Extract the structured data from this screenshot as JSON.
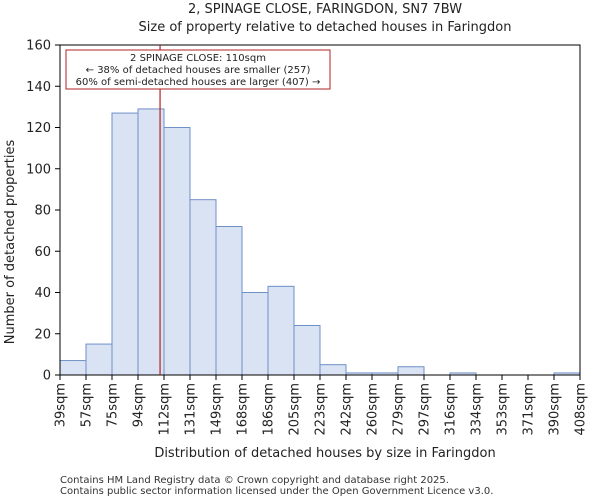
{
  "chart_data": {
    "type": "bar",
    "title": "2, SPINAGE CLOSE, FARINGDON, SN7 7BW",
    "subtitle": "Size of property relative to detached houses in Faringdon",
    "xlabel": "Distribution of detached houses by size in Faringdon",
    "ylabel": "Number of detached properties",
    "ylim": [
      0,
      160
    ],
    "yticks": [
      0,
      20,
      40,
      60,
      80,
      100,
      120,
      140,
      160
    ],
    "bin_edges": [
      39,
      57,
      75,
      94,
      112,
      131,
      149,
      168,
      186,
      205,
      223,
      242,
      260,
      279,
      297,
      316,
      334,
      353,
      371,
      390,
      408
    ],
    "tick_labels": [
      "39sqm",
      "57sqm",
      "75sqm",
      "94sqm",
      "112sqm",
      "131sqm",
      "149sqm",
      "168sqm",
      "186sqm",
      "205sqm",
      "223sqm",
      "242sqm",
      "260sqm",
      "279sqm",
      "297sqm",
      "316sqm",
      "334sqm",
      "353sqm",
      "371sqm",
      "390sqm",
      "408sqm"
    ],
    "values": [
      7,
      15,
      127,
      129,
      120,
      85,
      72,
      40,
      43,
      24,
      5,
      1,
      1,
      4,
      0,
      1,
      0,
      0,
      0,
      1
    ],
    "bar_fill": "#dae3f3",
    "bar_stroke": "#6f8fc7",
    "marker": {
      "value": 110,
      "color": "#b22222",
      "annotation_lines": [
        "2 SPINAGE CLOSE: 110sqm",
        "← 38% of detached houses are smaller (257)",
        "60% of semi-detached houses are larger (407) →"
      ]
    }
  },
  "footer": {
    "line1": "Contains HM Land Registry data © Crown copyright and database right 2025.",
    "line2": "Contains public sector information licensed under the Open Government Licence v3.0."
  }
}
